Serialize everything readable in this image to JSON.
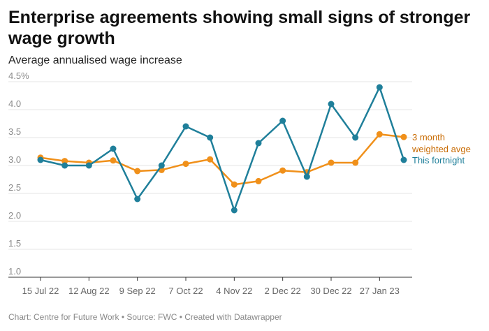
{
  "header": {
    "title": "Enterprise agreements showing small signs of stronger wage growth",
    "subtitle": "Average annualised wage increase"
  },
  "footer": {
    "credit": "Chart: Centre for Future Work • Source: FWC • Created with Datawrapper"
  },
  "colors": {
    "fortnight": "#1f7f9a",
    "weighted": "#f0901a",
    "weighted_label": "#c86a00",
    "grid": "#e4e4e4",
    "axis": "#333333"
  },
  "chart_data": {
    "type": "line",
    "title": "Enterprise agreements showing small signs of stronger wage growth",
    "ylabel": "Average annualised wage increase",
    "xlabel": "",
    "ylim": [
      1.0,
      4.5
    ],
    "y_ticks": [
      1.0,
      1.5,
      2.0,
      2.5,
      3.0,
      3.5,
      4.0,
      4.5
    ],
    "y_tick_labels": [
      "1.0",
      "1.5",
      "2.0",
      "2.5",
      "3.0",
      "3.5",
      "4.0",
      "4.5%"
    ],
    "x_count": 16,
    "x_tick_labels": [
      "15 Jul 22",
      "12 Aug 22",
      "9 Sep 22",
      "7 Oct 22",
      "4 Nov 22",
      "2 Dec 22",
      "30 Dec 22",
      "27 Jan 23"
    ],
    "x_tick_positions": [
      0,
      2,
      4,
      6,
      8,
      10,
      12,
      14
    ],
    "grid": true,
    "series": [
      {
        "name": "This fortnight",
        "label_lines": [
          "This fortnight"
        ],
        "values": [
          3.1,
          3.0,
          3.0,
          3.3,
          2.4,
          3.0,
          3.7,
          3.5,
          2.2,
          3.4,
          3.8,
          2.8,
          4.1,
          3.5,
          4.4,
          3.1
        ]
      },
      {
        "name": "3 month weighted avge",
        "label_lines": [
          "3 month",
          "weighted avge"
        ],
        "values": [
          3.14,
          3.08,
          3.05,
          3.09,
          2.9,
          2.92,
          3.03,
          3.11,
          2.66,
          2.72,
          2.91,
          2.88,
          3.05,
          3.05,
          3.56,
          3.51
        ]
      }
    ]
  }
}
